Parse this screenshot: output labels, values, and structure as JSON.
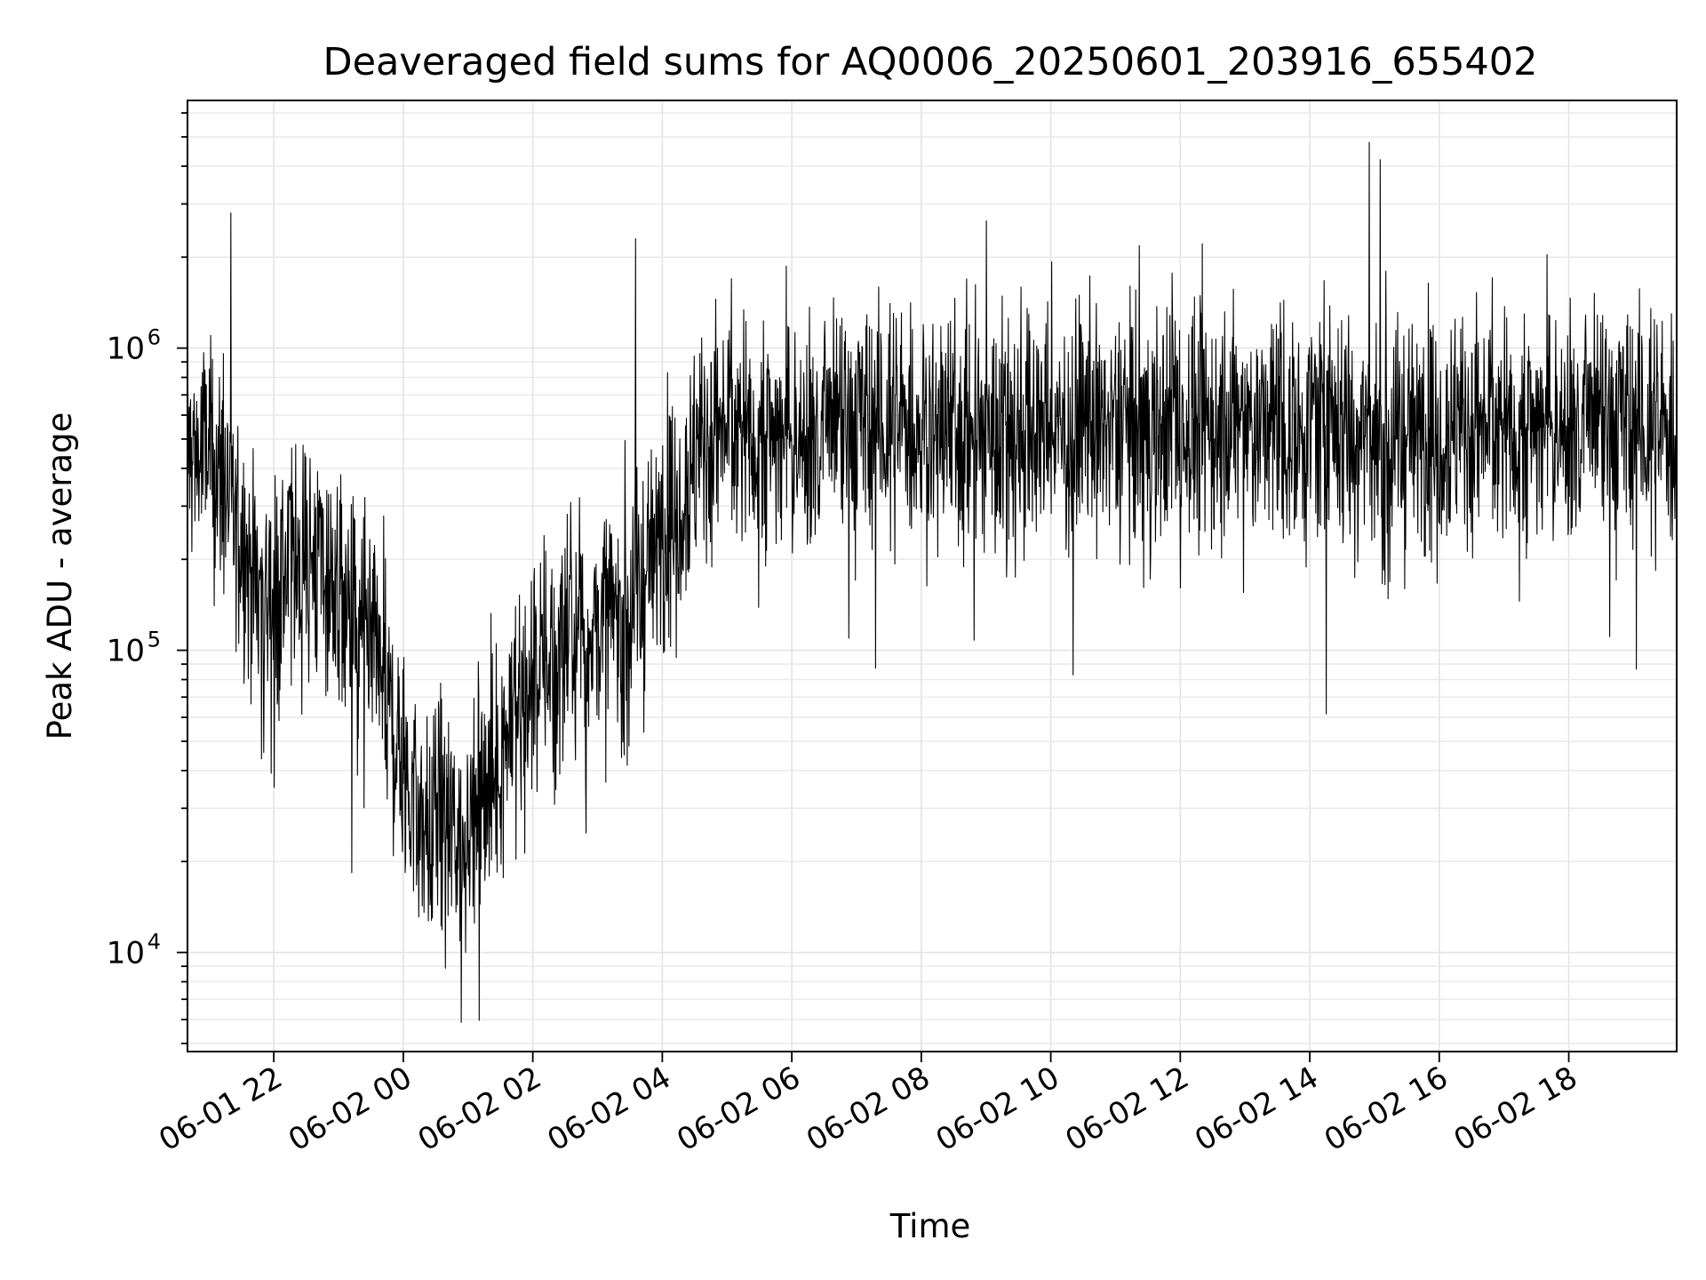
{
  "chart_data": {
    "type": "line",
    "title": "Deaveraged field sums for AQ0006_20250601_203916_655402",
    "xlabel": "Time",
    "ylabel": "Peak ADU - average",
    "yscale": "log",
    "xlim": [
      "2025-06-01 20:40",
      "2025-06-02 19:40"
    ],
    "ylim": [
      4700,
      6600000
    ],
    "grid": true,
    "legend": "none",
    "x_ticks": [
      "06-01 22",
      "06-02 00",
      "06-02 02",
      "06-02 04",
      "06-02 06",
      "06-02 08",
      "06-02 10",
      "06-02 12",
      "06-02 14",
      "06-02 16",
      "06-02 18"
    ],
    "y_ticks": [
      {
        "base": "10",
        "exp": "4",
        "value": 10000
      },
      {
        "base": "10",
        "exp": "5",
        "value": 100000
      },
      {
        "base": "10",
        "exp": "6",
        "value": 1000000
      }
    ],
    "series": [
      {
        "color": "#000000",
        "x": [
          "2025-06-01 20:40",
          "2025-06-01 21:00",
          "2025-06-01 21:20",
          "2025-06-01 21:40",
          "2025-06-01 22:00",
          "2025-06-01 22:20",
          "2025-06-01 22:40",
          "2025-06-01 23:00",
          "2025-06-01 23:20",
          "2025-06-01 23:40",
          "2025-06-02 00:00",
          "2025-06-02 00:20",
          "2025-06-02 00:40",
          "2025-06-02 01:00",
          "2025-06-02 01:20",
          "2025-06-02 01:40",
          "2025-06-02 02:00",
          "2025-06-02 02:20",
          "2025-06-02 02:40",
          "2025-06-02 03:00",
          "2025-06-02 03:20",
          "2025-06-02 03:40",
          "2025-06-02 04:00",
          "2025-06-02 04:20",
          "2025-06-02 04:40",
          "2025-06-02 05:00",
          "2025-06-02 06:00",
          "2025-06-02 07:00",
          "2025-06-02 08:00",
          "2025-06-02 09:00",
          "2025-06-02 10:00",
          "2025-06-02 11:00",
          "2025-06-02 12:00",
          "2025-06-02 13:00",
          "2025-06-02 14:00",
          "2025-06-02 14:40",
          "2025-06-02 15:00",
          "2025-06-02 15:20",
          "2025-06-02 16:00",
          "2025-06-02 17:00",
          "2025-06-02 18:00",
          "2025-06-02 19:00",
          "2025-06-02 19:40"
        ],
        "y": [
          450000,
          450000,
          300000,
          180000,
          150000,
          200000,
          200000,
          150000,
          110000,
          80000,
          40000,
          25000,
          25000,
          25000,
          35000,
          60000,
          80000,
          100000,
          110000,
          120000,
          130000,
          160000,
          250000,
          350000,
          500000,
          550000,
          500000,
          550000,
          550000,
          550000,
          520000,
          550000,
          550000,
          550000,
          550000,
          550000,
          500000,
          500000,
          550000,
          550000,
          550000,
          550000,
          500000
        ]
      }
    ],
    "spikes": [
      {
        "x": "2025-06-01 21:20",
        "y": 2800000
      },
      {
        "x": "2025-06-02 03:35",
        "y": 2300000
      },
      {
        "x": "2025-06-02 14:55",
        "y": 4800000
      },
      {
        "x": "2025-06-02 15:05",
        "y": 4200000
      }
    ]
  }
}
